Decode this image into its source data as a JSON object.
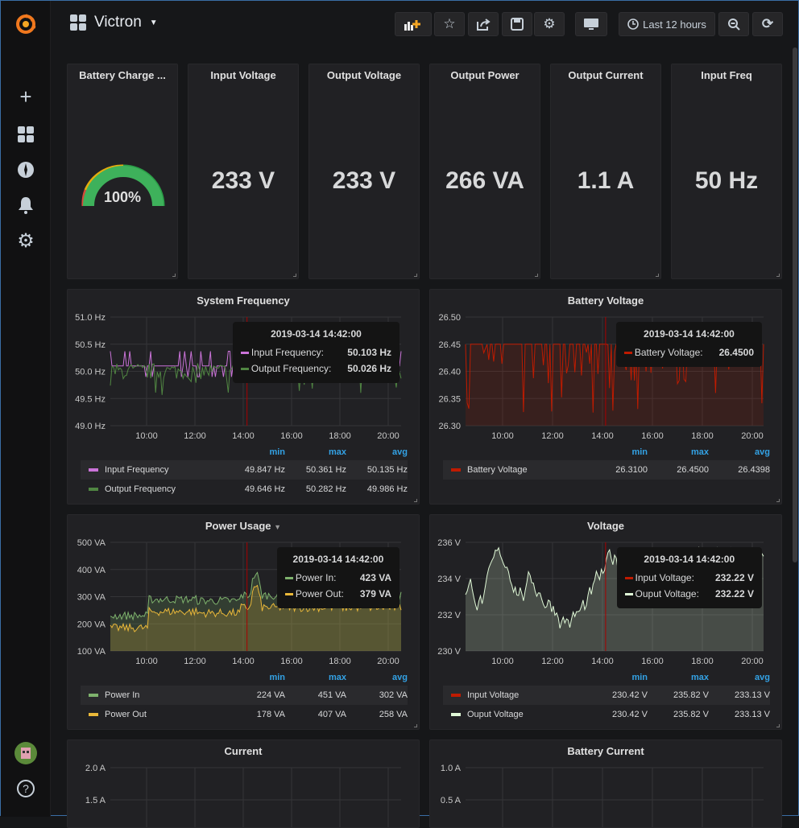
{
  "dashboard": {
    "title": "Victron",
    "time_range": "Last 12 hours"
  },
  "toolbar": [
    {
      "icon": "add-panel-icon"
    },
    {
      "icon": "star-icon"
    },
    {
      "icon": "share-icon"
    },
    {
      "icon": "save-icon"
    },
    {
      "icon": "gear-icon"
    },
    {
      "icon": "tv-mode-icon"
    },
    {
      "icon": "zoom-out-icon"
    },
    {
      "icon": "refresh-icon"
    }
  ],
  "sidebar": [
    {
      "icon": "grafana-logo"
    },
    {
      "icon": "plus-icon"
    },
    {
      "icon": "dashboards-icon"
    },
    {
      "icon": "explore-icon"
    },
    {
      "icon": "bell-icon"
    },
    {
      "icon": "gear-icon"
    },
    {
      "icon": "avatar"
    },
    {
      "icon": "help-icon"
    }
  ],
  "stats": [
    {
      "title": "Battery Charge ...",
      "value": "100%",
      "gauge": 1.0,
      "color": "#3eb15b"
    },
    {
      "title": "Input Voltage",
      "value": "233 V"
    },
    {
      "title": "Output Voltage",
      "value": "233 V"
    },
    {
      "title": "Output Power",
      "value": "266 VA"
    },
    {
      "title": "Output Current",
      "value": "1.1 A"
    },
    {
      "title": "Input Freq",
      "value": "50 Hz"
    }
  ],
  "legend_headers": [
    "min",
    "max",
    "avg"
  ],
  "graphs": [
    {
      "title": "System Frequency",
      "yticks": [
        "51.0 Hz",
        "50.5 Hz",
        "50.0 Hz",
        "49.5 Hz",
        "49.0 Hz"
      ],
      "xticks": [
        "10:00",
        "12:00",
        "14:00",
        "16:00",
        "18:00",
        "20:00"
      ],
      "series": [
        {
          "name": "Input Frequency",
          "color": "#ca73d8",
          "min": "49.847 Hz",
          "max": "50.361 Hz",
          "avg": "50.135 Hz"
        },
        {
          "name": "Output Frequency",
          "color": "#508642",
          "min": "49.646 Hz",
          "max": "50.282 Hz",
          "avg": "49.986 Hz"
        }
      ],
      "tooltip": {
        "time": "2019-03-14 14:42:00",
        "rows": [
          {
            "name": "Input Frequency:",
            "value": "50.103 Hz"
          },
          {
            "name": "Output Frequency:",
            "value": "50.026 Hz"
          }
        ]
      }
    },
    {
      "title": "Battery Voltage",
      "yticks": [
        "26.50",
        "26.45",
        "26.40",
        "26.35",
        "26.30"
      ],
      "xticks": [
        "10:00",
        "12:00",
        "14:00",
        "16:00",
        "18:00",
        "20:00"
      ],
      "series": [
        {
          "name": "Battery Voltage",
          "color": "#bf1b00",
          "min": "26.3100",
          "max": "26.4500",
          "avg": "26.4398"
        }
      ],
      "tooltip": {
        "time": "2019-03-14 14:42:00",
        "rows": [
          {
            "name": "Battery Voltage:",
            "value": "26.4500"
          }
        ]
      }
    },
    {
      "title": "Power Usage",
      "yticks": [
        "500 VA",
        "400 VA",
        "300 VA",
        "200 VA",
        "100 VA"
      ],
      "xticks": [
        "10:00",
        "12:00",
        "14:00",
        "16:00",
        "18:00",
        "20:00"
      ],
      "series": [
        {
          "name": "Power In",
          "color": "#7eb26d",
          "min": "224 VA",
          "max": "451 VA",
          "avg": "302 VA"
        },
        {
          "name": "Power Out",
          "color": "#eab839",
          "min": "178 VA",
          "max": "407 VA",
          "avg": "258 VA"
        }
      ],
      "tooltip": {
        "time": "2019-03-14 14:42:00",
        "rows": [
          {
            "name": "Power In:",
            "value": "423 VA"
          },
          {
            "name": "Power Out:",
            "value": "379 VA"
          }
        ]
      }
    },
    {
      "title": "Voltage",
      "yticks": [
        "236 V",
        "234 V",
        "232 V",
        "230 V"
      ],
      "xticks": [
        "10:00",
        "12:00",
        "14:00",
        "16:00",
        "18:00",
        "20:00"
      ],
      "series": [
        {
          "name": "Input Voltage",
          "color": "#bf1b00",
          "min": "230.42 V",
          "max": "235.82 V",
          "avg": "233.13 V"
        },
        {
          "name": "Ouput Voltage",
          "color": "#e0f9d7",
          "min": "230.42 V",
          "max": "235.82 V",
          "avg": "233.13 V"
        }
      ],
      "tooltip": {
        "time": "2019-03-14 14:42:00",
        "rows": [
          {
            "name": "Input Voltage:",
            "value": "232.22 V"
          },
          {
            "name": "Ouput Voltage:",
            "value": "232.22 V"
          }
        ]
      }
    },
    {
      "title": "Current",
      "yticks": [
        "2.0 A",
        "1.5 A"
      ],
      "series": []
    },
    {
      "title": "Battery Current",
      "yticks": [
        "1.0 A",
        "0.5 A"
      ],
      "series": []
    }
  ]
}
